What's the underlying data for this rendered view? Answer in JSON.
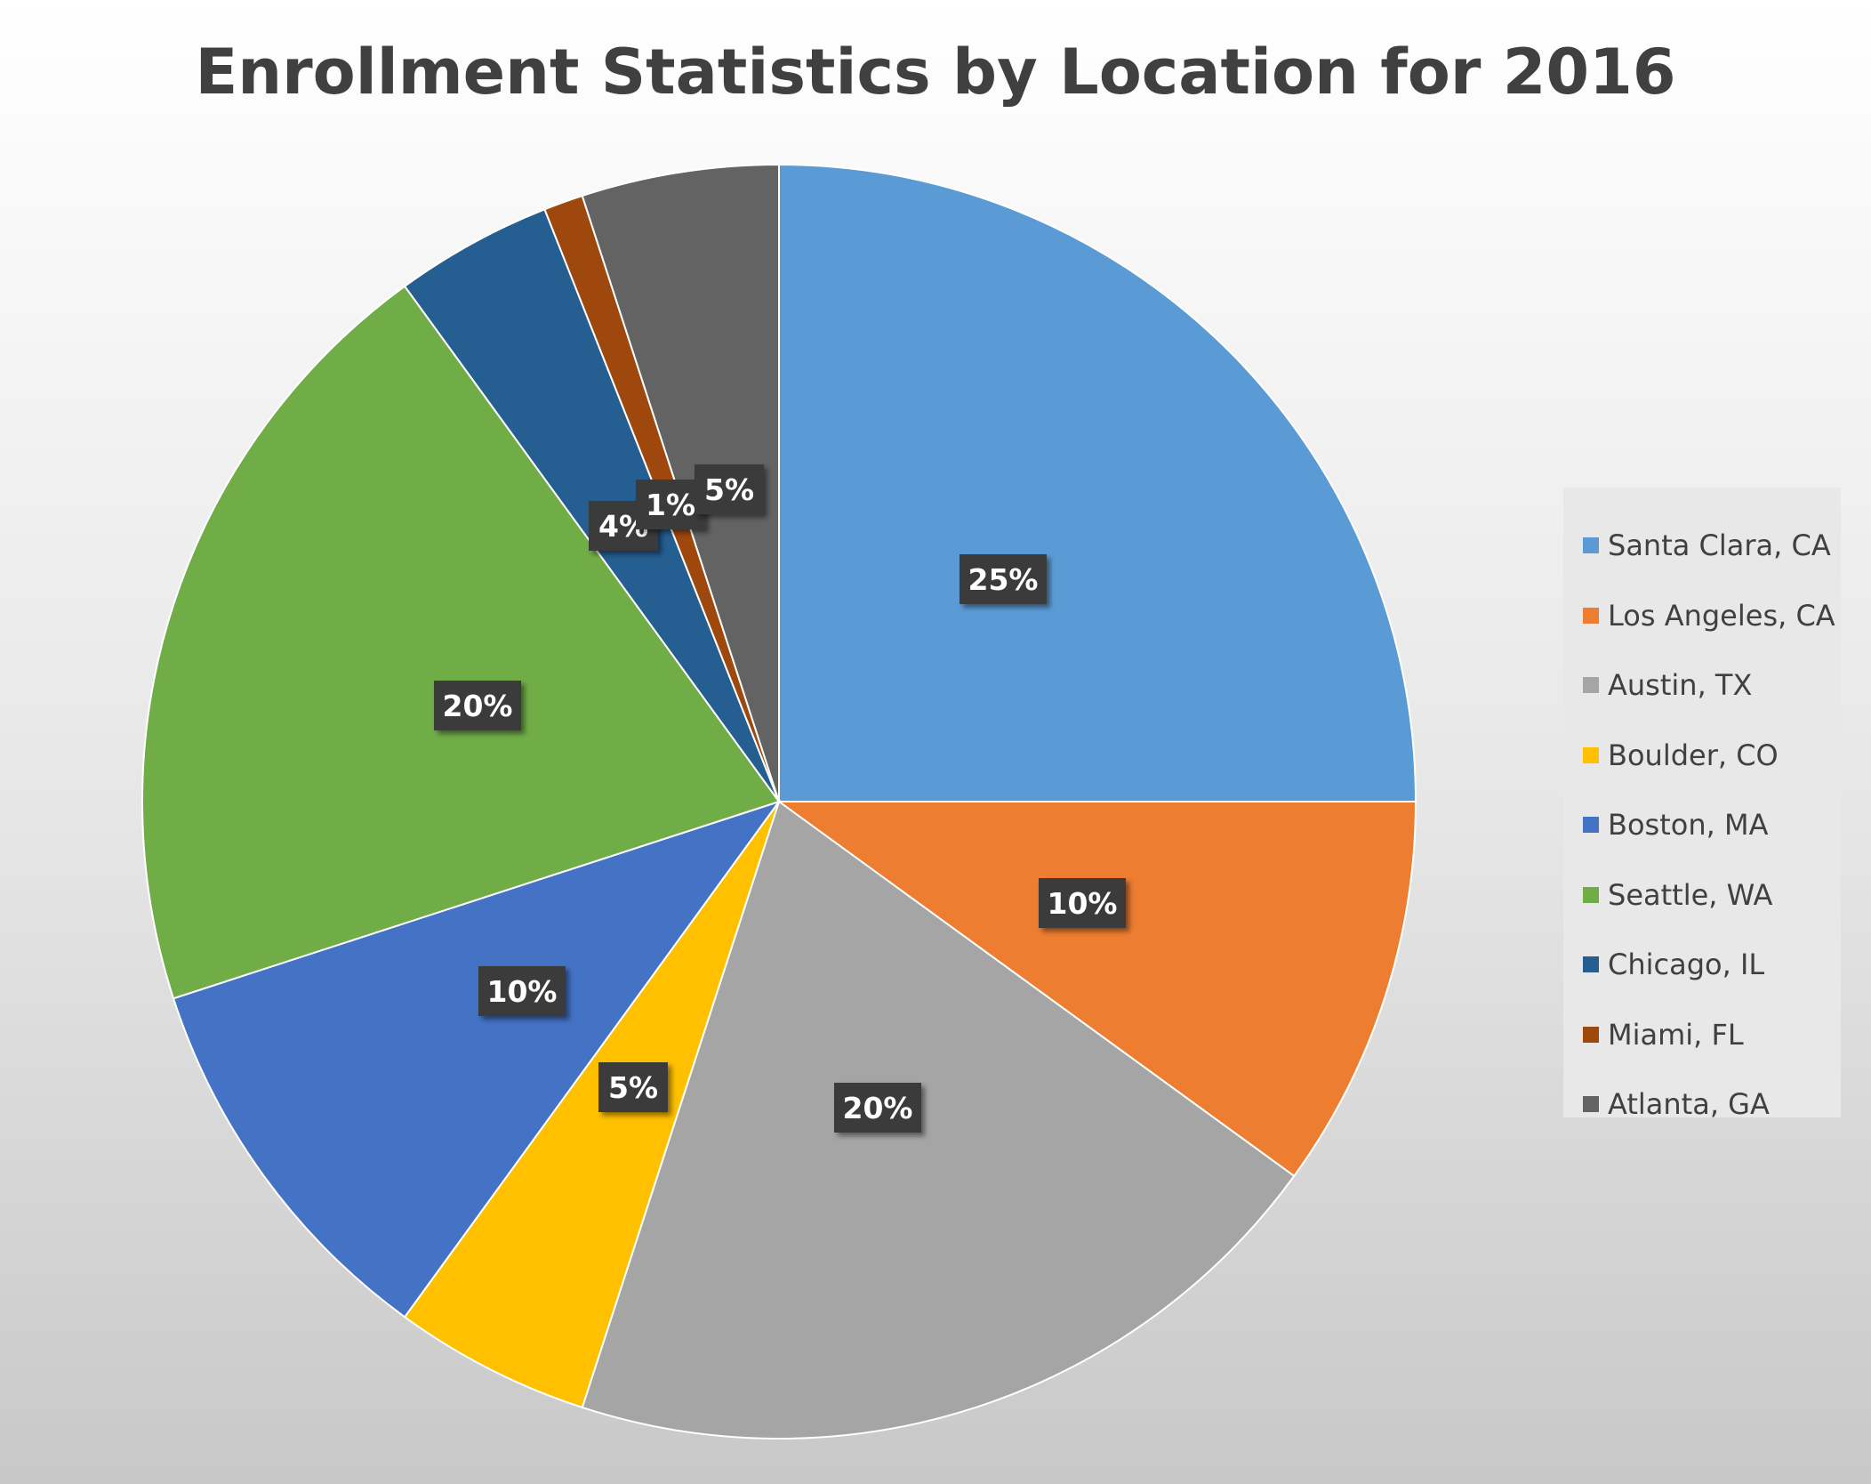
{
  "chart_data": {
    "type": "pie",
    "title": "Enrollment Statistics by Location for 2016",
    "categories": [
      "Santa Clara, CA",
      "Los Angeles, CA",
      "Austin, TX",
      "Boulder, CO",
      "Boston, MA",
      "Seattle, WA",
      "Chicago, IL",
      "Miami, FL",
      "Atlanta, GA"
    ],
    "values": [
      25,
      10,
      20,
      5,
      10,
      20,
      4,
      1,
      5
    ],
    "data_labels": [
      "25%",
      "10%",
      "20%",
      "5%",
      "10%",
      "20%",
      "4%",
      "1%",
      "5%"
    ],
    "colors": [
      "#5b9bd5",
      "#ed7d31",
      "#a5a5a5",
      "#ffc000",
      "#4472c4",
      "#70ad47",
      "#255e91",
      "#9e480e",
      "#636363"
    ],
    "start_angle_deg": 0,
    "direction": "clockwise",
    "legend_position": "right"
  }
}
